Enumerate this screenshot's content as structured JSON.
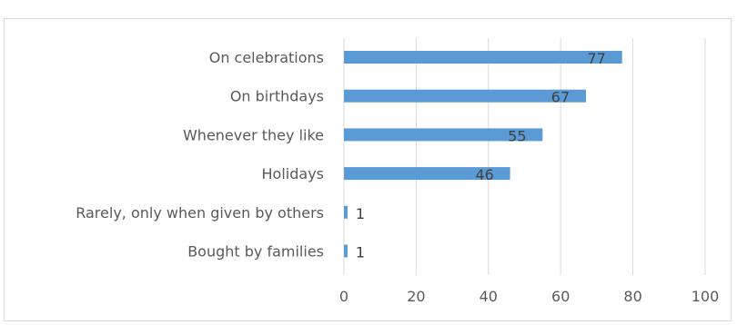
{
  "chart_data": {
    "type": "bar",
    "orientation": "horizontal",
    "title": "",
    "categories": [
      "On celebrations",
      "On birthdays",
      "Whenever they like",
      "Holidays",
      "Rarely, only when given by others",
      "Bought by families"
    ],
    "values": [
      77,
      67,
      55,
      46,
      1,
      1
    ],
    "data_labels": [
      "77",
      "67",
      "55",
      "46",
      "1",
      "1"
    ],
    "xlim": [
      0,
      100
    ],
    "x_ticks": [
      "0",
      "20",
      "40",
      "60",
      "80",
      "100"
    ],
    "xlabel": "",
    "ylabel": "",
    "grid": true,
    "legend": "none",
    "bar_color": "#5b9bd5",
    "grid_color": "#d9d9d9"
  }
}
